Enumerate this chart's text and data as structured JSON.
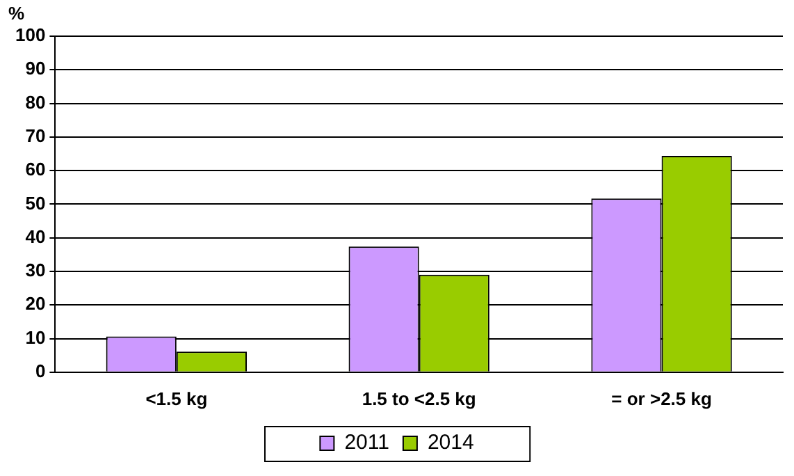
{
  "chart_data": {
    "type": "bar",
    "ylabel": "%",
    "categories": [
      "<1.5 kg",
      "1.5 to <2.5 kg",
      "= or >2.5 kg"
    ],
    "series": [
      {
        "name": "2011",
        "color": "#cc99ff",
        "values": [
          10.6,
          37.4,
          51.7
        ]
      },
      {
        "name": "2014",
        "color": "#99cc00",
        "values": [
          6.1,
          29.0,
          64.4
        ]
      }
    ],
    "ylim": [
      0,
      100
    ],
    "yticks": [
      0,
      10,
      20,
      30,
      40,
      50,
      60,
      70,
      80,
      90,
      100
    ],
    "grid": "y",
    "legend": "bottom"
  }
}
